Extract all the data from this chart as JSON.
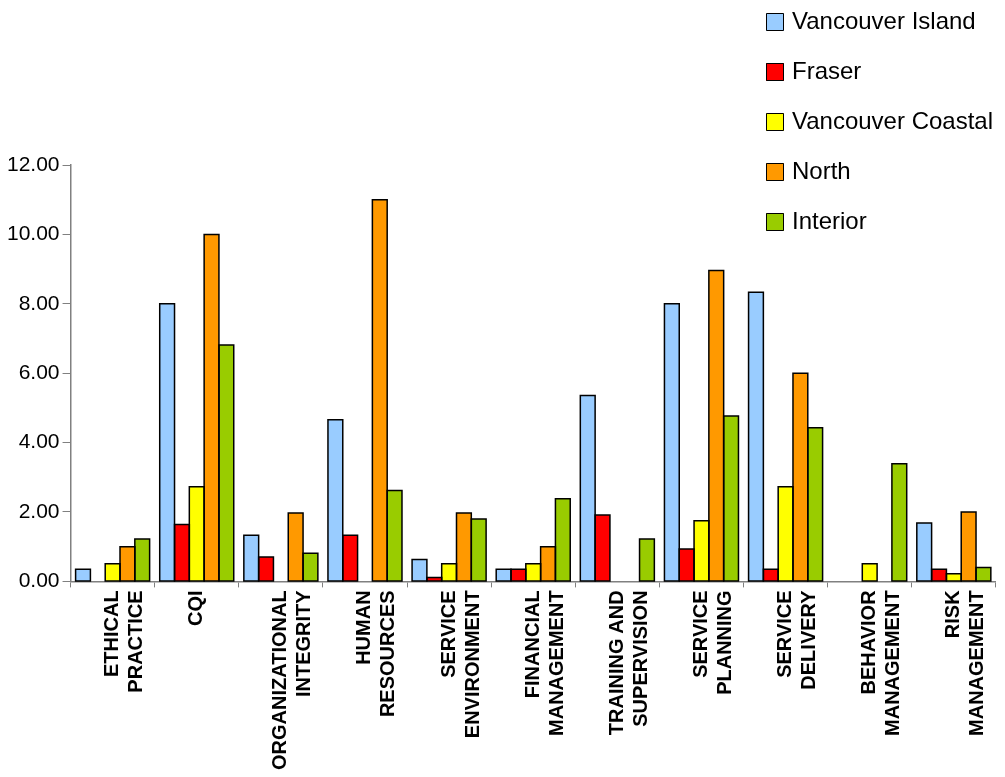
{
  "chart_data": {
    "type": "bar",
    "categories": [
      "ETHICAL PRACTICE",
      "CQI",
      "ORGANIZATIONAL INTEGRITY",
      "HUMAN RESOURCES",
      "SERVICE ENVIRONMENT",
      "FINANCIAL MANAGEMENT",
      "TRAINING AND SUPERVISION",
      "SERVICE PLANNING",
      "SERVICE DELIVERY",
      "BEHAVIOR MANAGEMENT",
      "RISK MANAGEMENT"
    ],
    "series": [
      {
        "name": "Vancouver Island",
        "color": "#99ccff",
        "values": [
          0.35,
          8.0,
          1.33,
          4.66,
          0.63,
          0.35,
          5.36,
          8.0,
          8.33,
          null,
          1.68
        ]
      },
      {
        "name": "Fraser",
        "color": "#ff0000",
        "values": [
          null,
          1.64,
          0.7,
          1.33,
          0.11,
          0.35,
          1.91,
          0.93,
          0.35,
          null,
          0.35
        ]
      },
      {
        "name": "Vancouver Coastal",
        "color": "#ffff00",
        "values": [
          0.51,
          2.73,
          null,
          null,
          0.51,
          0.51,
          null,
          1.75,
          2.73,
          0.51,
          0.22
        ]
      },
      {
        "name": "North",
        "color": "#ff9900",
        "values": [
          1.0,
          10.0,
          1.97,
          11.0,
          1.97,
          1.0,
          null,
          8.96,
          6.0,
          null,
          2.0
        ]
      },
      {
        "name": "Interior",
        "color": "#99cc00",
        "values": [
          1.22,
          6.81,
          0.81,
          2.62,
          1.8,
          2.38,
          1.22,
          4.77,
          4.43,
          3.39,
          0.4
        ]
      }
    ],
    "ylim": [
      0,
      12
    ],
    "yticks": [
      {
        "value": 0,
        "label": "0.00"
      },
      {
        "value": 2,
        "label": "2.00"
      },
      {
        "value": 4,
        "label": "4.00"
      },
      {
        "value": 6,
        "label": "6.00"
      },
      {
        "value": 8,
        "label": "8.00"
      },
      {
        "value": 10,
        "label": "10.00"
      },
      {
        "value": 12,
        "label": "12.00"
      }
    ],
    "grid": false,
    "legend": "top right"
  }
}
